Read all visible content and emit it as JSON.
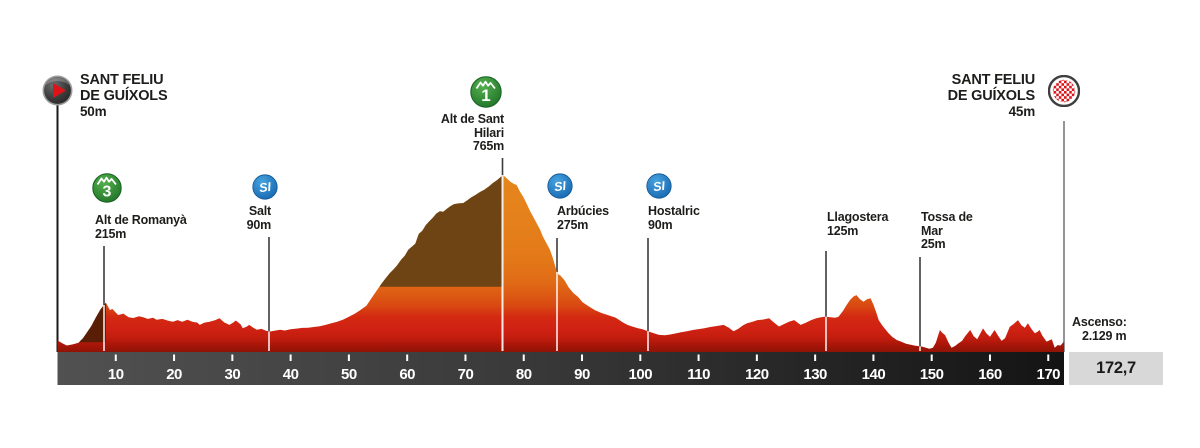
{
  "start": {
    "line1": "SANT FELIU",
    "line2": "DE GUÍXOLS",
    "elevation": "50m"
  },
  "finish": {
    "line1": "SANT FELIU",
    "line2": "DE GUÍXOLS",
    "elevation": "45m"
  },
  "stats": {
    "ascent_label": "Ascenso:",
    "ascent_value": "2.129 m",
    "total_distance": "172,7"
  },
  "colors": {
    "text": "#1d1d1b",
    "accent_red": "#dd1318",
    "badge_green_light": "#55b04e",
    "badge_green_dark": "#1e7227",
    "badge_blue_light": "#47a3de",
    "badge_blue_dark": "#1565af",
    "shadow_main": "#6f4414",
    "shadow_small": "#581f06",
    "axis_left": "#515151",
    "axis_right": "#141414",
    "marker_dark": "#3c3c3c",
    "marker_light": "#ffffff",
    "finish_line": "#949494",
    "start_line": "#1a1a1a",
    "box_gray": "#d8d8d8"
  },
  "chart_data": {
    "type": "area",
    "title": "Stage profile Sant Feliu de Guíxols - Sant Feliu de Guíxols",
    "x_unit": "km",
    "x_range": [
      0,
      172.7
    ],
    "x_ticks": [
      10,
      20,
      30,
      40,
      50,
      60,
      70,
      80,
      90,
      100,
      110,
      120,
      130,
      140,
      150,
      160,
      170
    ],
    "total_distance_km": 172.7,
    "total_ascent_m": 2129,
    "ylim_m": [
      0,
      765
    ],
    "gradient_stops": [
      [
        0,
        "#e5861e"
      ],
      [
        0.28,
        "#e5801b"
      ],
      [
        0.48,
        "#e37818"
      ],
      [
        0.61,
        "#e06a16"
      ],
      [
        0.67,
        "#dd5c14"
      ],
      [
        0.74,
        "#d94812"
      ],
      [
        0.8,
        "#d32a12"
      ],
      [
        0.87,
        "#d02113"
      ],
      [
        0.92,
        "#c21d0e"
      ],
      [
        0.96,
        "#a81609"
      ],
      [
        1,
        "#8e1306"
      ]
    ],
    "waypoints": [
      {
        "id": "romanya",
        "name_lines": [
          "Alt de Romanyà"
        ],
        "elevation": "215m",
        "km": 8.3,
        "badge": "3",
        "badge_type": "climb"
      },
      {
        "id": "salt",
        "name_lines": [
          "Salt"
        ],
        "elevation": "90m",
        "km": 36.3,
        "badge": "SI",
        "badge_type": "sprint"
      },
      {
        "id": "hilari",
        "name_lines": [
          "Alt de Sant",
          "Hilari"
        ],
        "elevation": "765m",
        "km": 76.4,
        "badge": "1",
        "badge_type": "climb"
      },
      {
        "id": "arbucies",
        "name_lines": [
          "Arbúcies"
        ],
        "elevation": "275m",
        "km": 85.7,
        "badge": "SI",
        "badge_type": "sprint"
      },
      {
        "id": "hostalric",
        "name_lines": [
          "Hostalric"
        ],
        "elevation": "90m",
        "km": 101.3,
        "badge": "SI",
        "badge_type": "sprint"
      },
      {
        "id": "llagostera",
        "name_lines": [
          "Llagostera"
        ],
        "elevation": "125m",
        "km": 131.9,
        "badge": null,
        "badge_type": null
      },
      {
        "id": "tossa",
        "name_lines": [
          "Tossa de",
          "Mar"
        ],
        "elevation": "25m",
        "km": 148.1,
        "badge": null,
        "badge_type": null
      }
    ],
    "shadows": [
      {
        "from_km": 55.3,
        "to_km": 76.4,
        "base_elev": 282,
        "color": "#6f4414"
      },
      {
        "from_km": 3.8,
        "to_km": 8.3,
        "base_elev": 42,
        "color": "#581f06"
      }
    ],
    "profile": [
      [
        0,
        50
      ],
      [
        0.8,
        38
      ],
      [
        1.6,
        28
      ],
      [
        2.6,
        33
      ],
      [
        3.6,
        40
      ],
      [
        4.4,
        60
      ],
      [
        5.2,
        90
      ],
      [
        5.8,
        112
      ],
      [
        6.6,
        150
      ],
      [
        7.4,
        185
      ],
      [
        8.3,
        213
      ],
      [
        8.7,
        195
      ],
      [
        9,
        181
      ],
      [
        9.4,
        186
      ],
      [
        10.4,
        160
      ],
      [
        11.3,
        166
      ],
      [
        12.2,
        150
      ],
      [
        13,
        147
      ],
      [
        14,
        154
      ],
      [
        14.7,
        150
      ],
      [
        15.5,
        143
      ],
      [
        16.4,
        148
      ],
      [
        17,
        139
      ],
      [
        18,
        143
      ],
      [
        19,
        135
      ],
      [
        19.8,
        131
      ],
      [
        20.6,
        138
      ],
      [
        21.4,
        131
      ],
      [
        22.3,
        139
      ],
      [
        23.2,
        130
      ],
      [
        24,
        127
      ],
      [
        24.4,
        117
      ],
      [
        25.2,
        127
      ],
      [
        26.1,
        131
      ],
      [
        27,
        137
      ],
      [
        27.8,
        146
      ],
      [
        28.6,
        128
      ],
      [
        29.5,
        117
      ],
      [
        30.2,
        128
      ],
      [
        30.6,
        136
      ],
      [
        31.4,
        120
      ],
      [
        31.8,
        103
      ],
      [
        32.5,
        110
      ],
      [
        32.9,
        117
      ],
      [
        33.6,
        105
      ],
      [
        34.2,
        96
      ],
      [
        35,
        100
      ],
      [
        35.8,
        92
      ],
      [
        36.4,
        88
      ],
      [
        37.2,
        92
      ],
      [
        38.2,
        96
      ],
      [
        39,
        93
      ],
      [
        40,
        98
      ],
      [
        41,
        101
      ],
      [
        42,
        104
      ],
      [
        43,
        105
      ],
      [
        44,
        108
      ],
      [
        45,
        111
      ],
      [
        46,
        117
      ],
      [
        47,
        124
      ],
      [
        48,
        131
      ],
      [
        49,
        140
      ],
      [
        50,
        152
      ],
      [
        51,
        165
      ],
      [
        52,
        182
      ],
      [
        53,
        200
      ],
      [
        54,
        237
      ],
      [
        55,
        274
      ],
      [
        55.6,
        295
      ],
      [
        56.2,
        315
      ],
      [
        57,
        340
      ],
      [
        57.6,
        355
      ],
      [
        58.2,
        372
      ],
      [
        59,
        400
      ],
      [
        59.6,
        416
      ],
      [
        60.2,
        442
      ],
      [
        60.8,
        455
      ],
      [
        61.4,
        468
      ],
      [
        62,
        510
      ],
      [
        62.6,
        524
      ],
      [
        63.2,
        548
      ],
      [
        63.8,
        565
      ],
      [
        64.4,
        580
      ],
      [
        65,
        598
      ],
      [
        65.6,
        608
      ],
      [
        66.2,
        606
      ],
      [
        66.8,
        618
      ],
      [
        67.4,
        630
      ],
      [
        68,
        638
      ],
      [
        68.8,
        642
      ],
      [
        69.6,
        643
      ],
      [
        70.3,
        655
      ],
      [
        71,
        668
      ],
      [
        71.7,
        678
      ],
      [
        72.5,
        691
      ],
      [
        73.2,
        700
      ],
      [
        74,
        715
      ],
      [
        74.7,
        730
      ],
      [
        75.4,
        742
      ],
      [
        76,
        755
      ],
      [
        76.4,
        765
      ],
      [
        77,
        752
      ],
      [
        77.6,
        738
      ],
      [
        78.2,
        728
      ],
      [
        78.8,
        721
      ],
      [
        79.3,
        695
      ],
      [
        79.9,
        671
      ],
      [
        80.5,
        640
      ],
      [
        81,
        613
      ],
      [
        81.6,
        585
      ],
      [
        82.2,
        557
      ],
      [
        82.8,
        528
      ],
      [
        83.3,
        498
      ],
      [
        83.9,
        470
      ],
      [
        84.5,
        441
      ],
      [
        85,
        405
      ],
      [
        85.4,
        370
      ],
      [
        85.8,
        338
      ],
      [
        86.3,
        330
      ],
      [
        87,
        310
      ],
      [
        87.7,
        280
      ],
      [
        88.5,
        255
      ],
      [
        89.3,
        239
      ],
      [
        90.1,
        215
      ],
      [
        91,
        200
      ],
      [
        92.2,
        181
      ],
      [
        93.4,
        168
      ],
      [
        94.6,
        158
      ],
      [
        95.8,
        148
      ],
      [
        97,
        128
      ],
      [
        97.8,
        117
      ],
      [
        98.6,
        110
      ],
      [
        99.6,
        103
      ],
      [
        100.4,
        98
      ],
      [
        101.3,
        90
      ],
      [
        102.2,
        82
      ],
      [
        103.2,
        74
      ],
      [
        104.2,
        72
      ],
      [
        105,
        75
      ],
      [
        106,
        80
      ],
      [
        107,
        85
      ],
      [
        108,
        90
      ],
      [
        109,
        95
      ],
      [
        110,
        99
      ],
      [
        111,
        103
      ],
      [
        112,
        108
      ],
      [
        113,
        112
      ],
      [
        114.3,
        117
      ],
      [
        115.2,
        105
      ],
      [
        116,
        90
      ],
      [
        116.8,
        100
      ],
      [
        117.6,
        115
      ],
      [
        118.3,
        124
      ],
      [
        119.2,
        130
      ],
      [
        120.1,
        138
      ],
      [
        121,
        140
      ],
      [
        122.1,
        146
      ],
      [
        122.9,
        128
      ],
      [
        123.8,
        110
      ],
      [
        124.6,
        120
      ],
      [
        125.5,
        131
      ],
      [
        126.4,
        138
      ],
      [
        127.5,
        117
      ],
      [
        128.4,
        126
      ],
      [
        129.3,
        138
      ],
      [
        130.2,
        146
      ],
      [
        131,
        150
      ],
      [
        131.8,
        153
      ],
      [
        132.6,
        150
      ],
      [
        133.4,
        148
      ],
      [
        134,
        152
      ],
      [
        134.8,
        178
      ],
      [
        135.4,
        203
      ],
      [
        136,
        225
      ],
      [
        136.6,
        240
      ],
      [
        137.1,
        246
      ],
      [
        137.7,
        228
      ],
      [
        138.3,
        217
      ],
      [
        138.9,
        228
      ],
      [
        139.5,
        232
      ],
      [
        140,
        205
      ],
      [
        140.5,
        170
      ],
      [
        140.9,
        138
      ],
      [
        141.5,
        115
      ],
      [
        142.1,
        96
      ],
      [
        142.6,
        81
      ],
      [
        143.2,
        66
      ],
      [
        144,
        52
      ],
      [
        144.8,
        44
      ],
      [
        145.6,
        36
      ],
      [
        146.4,
        31
      ],
      [
        147.2,
        27
      ],
      [
        148.2,
        24
      ],
      [
        149,
        18
      ],
      [
        149.6,
        14
      ],
      [
        150.2,
        18
      ],
      [
        150.7,
        40
      ],
      [
        151.4,
        95
      ],
      [
        151.8,
        83
      ],
      [
        152.3,
        73
      ],
      [
        152.9,
        40
      ],
      [
        153.4,
        18
      ],
      [
        154,
        26
      ],
      [
        154.6,
        38
      ],
      [
        155.2,
        48
      ],
      [
        155.8,
        70
      ],
      [
        156.6,
        95
      ],
      [
        157.2,
        68
      ],
      [
        157.8,
        55
      ],
      [
        158.3,
        78
      ],
      [
        158.8,
        102
      ],
      [
        159.4,
        80
      ],
      [
        160,
        66
      ],
      [
        160.8,
        95
      ],
      [
        161.4,
        70
      ],
      [
        162,
        48
      ],
      [
        162.6,
        60
      ],
      [
        163.4,
        109
      ],
      [
        164,
        120
      ],
      [
        164.8,
        138
      ],
      [
        165.4,
        115
      ],
      [
        166,
        105
      ],
      [
        166.5,
        124
      ],
      [
        167.1,
        100
      ],
      [
        167.7,
        81
      ],
      [
        168.2,
        88
      ],
      [
        168.5,
        95
      ],
      [
        169,
        70
      ],
      [
        169.7,
        45
      ],
      [
        170.2,
        50
      ],
      [
        170.6,
        55
      ],
      [
        171.1,
        18
      ],
      [
        171.6,
        30
      ],
      [
        172.1,
        28
      ],
      [
        172.7,
        45
      ]
    ]
  }
}
